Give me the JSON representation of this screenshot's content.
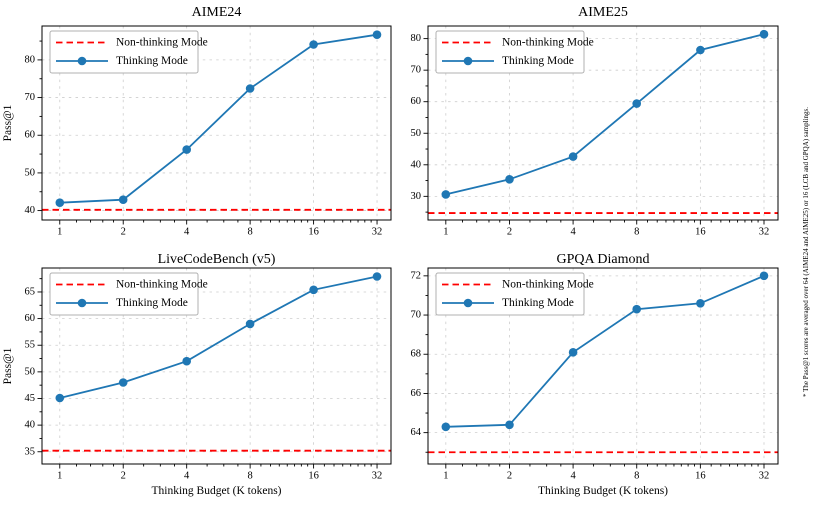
{
  "figure": {
    "background": "#ffffff",
    "footnote": "* The Pass@1 scores are averaged over 64 (AIME24 and AIME25) or 16 (LCB and GPQA) samplings.",
    "shared_xlabel": "Thinking Budget (K tokens)",
    "shared_ylabel": "Pass@1",
    "legend_labels": [
      "Non-thinking Mode",
      "Thinking Mode"
    ],
    "colors": {
      "thinking": "#1f77b4",
      "non_thinking": "#ff0000",
      "grid": "#cdcdcd",
      "frame": "#000000",
      "legend_border": "#b0b0b0",
      "text": "#000000"
    }
  },
  "chart_data": [
    {
      "type": "line",
      "title": "AIME24",
      "xlabel": "",
      "ylabel": "Pass@1",
      "x_scale": "log2",
      "x": [
        1,
        2,
        4,
        8,
        16,
        32
      ],
      "x_tick_labels": [
        "1",
        "2",
        "4",
        "8",
        "16",
        "32"
      ],
      "yticks": [
        40,
        50,
        60,
        70,
        80
      ],
      "ylim": [
        37.5,
        89.0
      ],
      "grid": true,
      "legend_position": "upper left",
      "series": [
        {
          "name": "Non-thinking Mode",
          "style": "dashed-horizontal",
          "color": "#ff0000",
          "value": 40.2
        },
        {
          "name": "Thinking Mode",
          "style": "line-markers",
          "color": "#1f77b4",
          "values": [
            42.1,
            42.9,
            56.2,
            72.4,
            84.1,
            86.7
          ]
        }
      ]
    },
    {
      "type": "line",
      "title": "AIME25",
      "xlabel": "",
      "ylabel": "",
      "x_scale": "log2",
      "x": [
        1,
        2,
        4,
        8,
        16,
        32
      ],
      "x_tick_labels": [
        "1",
        "2",
        "4",
        "8",
        "16",
        "32"
      ],
      "yticks": [
        30,
        40,
        50,
        60,
        70,
        80
      ],
      "ylim": [
        22.5,
        84.0
      ],
      "grid": true,
      "legend_position": "upper left",
      "series": [
        {
          "name": "Non-thinking Mode",
          "style": "dashed-horizontal",
          "color": "#ff0000",
          "value": 24.7
        },
        {
          "name": "Thinking Mode",
          "style": "line-markers",
          "color": "#1f77b4",
          "values": [
            30.6,
            35.4,
            42.6,
            59.4,
            76.4,
            81.4
          ]
        }
      ]
    },
    {
      "type": "line",
      "title": "LiveCodeBench (v5)",
      "xlabel": "Thinking Budget (K tokens)",
      "ylabel": "Pass@1",
      "x_scale": "log2",
      "x": [
        1,
        2,
        4,
        8,
        16,
        32
      ],
      "x_tick_labels": [
        "1",
        "2",
        "4",
        "8",
        "16",
        "32"
      ],
      "yticks": [
        35,
        40,
        45,
        50,
        55,
        60,
        65
      ],
      "ylim": [
        32.7,
        69.5
      ],
      "grid": true,
      "legend_position": "upper left",
      "series": [
        {
          "name": "Non-thinking Mode",
          "style": "dashed-horizontal",
          "color": "#ff0000",
          "value": 35.2
        },
        {
          "name": "Thinking Mode",
          "style": "line-markers",
          "color": "#1f77b4",
          "values": [
            45.1,
            48.0,
            52.0,
            59.0,
            65.4,
            67.9
          ]
        }
      ]
    },
    {
      "type": "line",
      "title": "GPQA Diamond",
      "xlabel": "Thinking Budget (K tokens)",
      "ylabel": "",
      "x_scale": "log2",
      "x": [
        1,
        2,
        4,
        8,
        16,
        32
      ],
      "x_tick_labels": [
        "1",
        "2",
        "4",
        "8",
        "16",
        "32"
      ],
      "yticks": [
        64,
        66,
        68,
        70,
        72
      ],
      "ylim": [
        62.4,
        72.4
      ],
      "grid": true,
      "legend_position": "upper left",
      "series": [
        {
          "name": "Non-thinking Mode",
          "style": "dashed-horizontal",
          "color": "#ff0000",
          "value": 63.0
        },
        {
          "name": "Thinking Mode",
          "style": "line-markers",
          "color": "#1f77b4",
          "values": [
            64.3,
            64.4,
            68.1,
            70.3,
            70.6,
            72.0
          ]
        }
      ]
    }
  ]
}
